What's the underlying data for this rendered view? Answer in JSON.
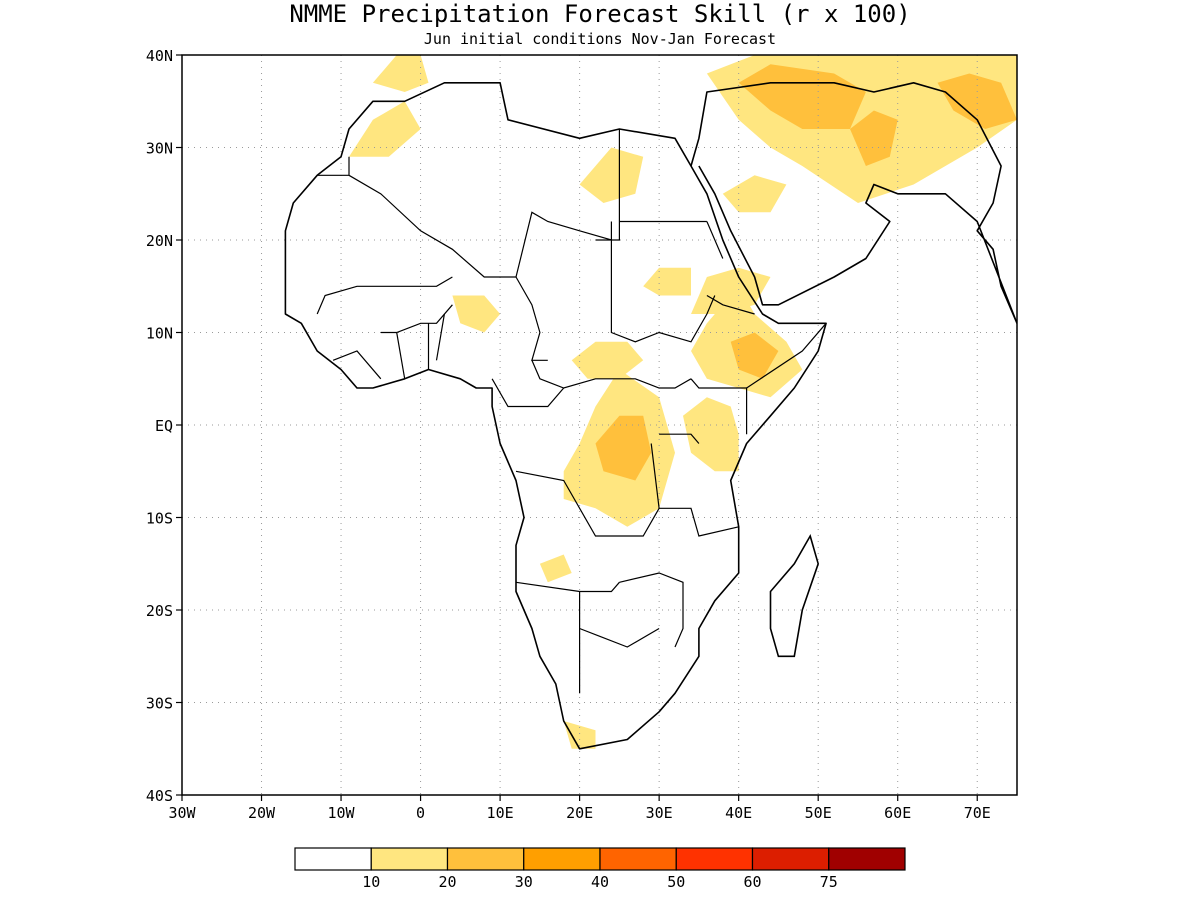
{
  "title": "NMME Precipitation Forecast Skill (r x 100)",
  "subtitle": "Jun initial conditions  Nov-Jan Forecast",
  "map": {
    "lon_range": [
      -30,
      75
    ],
    "lat_range": [
      -40,
      40
    ],
    "grid": true,
    "lat_ticks": [
      {
        "value": 40,
        "label": "40N"
      },
      {
        "value": 30,
        "label": "30N"
      },
      {
        "value": 20,
        "label": "20N"
      },
      {
        "value": 10,
        "label": "10N"
      },
      {
        "value": 0,
        "label": "EQ"
      },
      {
        "value": -10,
        "label": "10S"
      },
      {
        "value": -20,
        "label": "20S"
      },
      {
        "value": -30,
        "label": "30S"
      },
      {
        "value": -40,
        "label": "40S"
      }
    ],
    "lon_ticks": [
      {
        "value": -30,
        "label": "30W"
      },
      {
        "value": -20,
        "label": "20W"
      },
      {
        "value": -10,
        "label": "10W"
      },
      {
        "value": 0,
        "label": "0"
      },
      {
        "value": 10,
        "label": "10E"
      },
      {
        "value": 20,
        "label": "20E"
      },
      {
        "value": 30,
        "label": "30E"
      },
      {
        "value": 40,
        "label": "40E"
      },
      {
        "value": 50,
        "label": "50E"
      },
      {
        "value": 60,
        "label": "60E"
      },
      {
        "value": 70,
        "label": "70E"
      }
    ]
  },
  "colorbar": {
    "colors": [
      "#ffffff",
      "#ffe680",
      "#ffc03c",
      "#ff9f00",
      "#ff6400",
      "#ff3200",
      "#dc1e00",
      "#a00000"
    ],
    "labels": [
      "10",
      "20",
      "30",
      "40",
      "50",
      "60",
      "75"
    ]
  },
  "skill_regions": [
    {
      "level": 1,
      "poly": [
        [
          18,
          -5
        ],
        [
          20,
          -2
        ],
        [
          22,
          2
        ],
        [
          25,
          6
        ],
        [
          30,
          3
        ],
        [
          32,
          -3
        ],
        [
          30,
          -9
        ],
        [
          26,
          -11
        ],
        [
          22,
          -9
        ],
        [
          18,
          -8
        ]
      ]
    },
    {
      "level": 2,
      "poly": [
        [
          22,
          -2
        ],
        [
          25,
          1
        ],
        [
          28,
          1
        ],
        [
          29,
          -3
        ],
        [
          27,
          -6
        ],
        [
          23,
          -5
        ]
      ]
    },
    {
      "level": 1,
      "poly": [
        [
          33,
          1
        ],
        [
          36,
          3
        ],
        [
          39,
          2
        ],
        [
          40,
          -1
        ],
        [
          40,
          -5
        ],
        [
          37,
          -5
        ],
        [
          34,
          -3
        ]
      ]
    },
    {
      "level": 1,
      "poly": [
        [
          34,
          8
        ],
        [
          36,
          11
        ],
        [
          40,
          15
        ],
        [
          42,
          12
        ],
        [
          46,
          9
        ],
        [
          48,
          6
        ],
        [
          44,
          3
        ],
        [
          40,
          4
        ],
        [
          36,
          5
        ]
      ]
    },
    {
      "level": 2,
      "poly": [
        [
          39,
          9
        ],
        [
          42,
          10
        ],
        [
          45,
          8
        ],
        [
          43,
          5
        ],
        [
          40,
          6
        ]
      ]
    },
    {
      "level": 1,
      "poly": [
        [
          19,
          7
        ],
        [
          22,
          9
        ],
        [
          26,
          9
        ],
        [
          28,
          7
        ],
        [
          25,
          5
        ],
        [
          21,
          5
        ]
      ]
    },
    {
      "level": 1,
      "poly": [
        [
          34,
          12
        ],
        [
          36,
          16
        ],
        [
          40,
          17
        ],
        [
          44,
          16
        ],
        [
          42,
          13
        ],
        [
          38,
          12
        ]
      ]
    },
    {
      "level": 1,
      "poly": [
        [
          28,
          15
        ],
        [
          30,
          17
        ],
        [
          34,
          17
        ],
        [
          34,
          14
        ],
        [
          30,
          14
        ]
      ]
    },
    {
      "level": 1,
      "poly": [
        [
          4,
          14
        ],
        [
          8,
          14
        ],
        [
          10,
          12
        ],
        [
          8,
          10
        ],
        [
          5,
          11
        ]
      ]
    },
    {
      "level": 1,
      "poly": [
        [
          15,
          -15
        ],
        [
          18,
          -14
        ],
        [
          19,
          -16
        ],
        [
          16,
          -17
        ]
      ]
    },
    {
      "level": 1,
      "poly": [
        [
          18,
          -32
        ],
        [
          22,
          -33
        ],
        [
          22,
          -35
        ],
        [
          19,
          -35
        ]
      ]
    },
    {
      "level": 1,
      "poly": [
        [
          20,
          26
        ],
        [
          24,
          30
        ],
        [
          28,
          29
        ],
        [
          27,
          25
        ],
        [
          23,
          24
        ]
      ]
    },
    {
      "level": 1,
      "poly": [
        [
          -9,
          29
        ],
        [
          -6,
          33
        ],
        [
          -2,
          35
        ],
        [
          0,
          32
        ],
        [
          -4,
          29
        ]
      ]
    },
    {
      "level": 1,
      "poly": [
        [
          -6,
          37
        ],
        [
          -3,
          40
        ],
        [
          0,
          40
        ],
        [
          1,
          37
        ],
        [
          -2,
          36
        ]
      ]
    },
    {
      "level": 1,
      "poly": [
        [
          36,
          38
        ],
        [
          42,
          40
        ],
        [
          55,
          40
        ],
        [
          75,
          40
        ],
        [
          75,
          33
        ],
        [
          70,
          30
        ],
        [
          62,
          26
        ],
        [
          55,
          24
        ],
        [
          48,
          28
        ],
        [
          44,
          30
        ],
        [
          40,
          33
        ]
      ]
    },
    {
      "level": 2,
      "poly": [
        [
          40,
          37
        ],
        [
          44,
          39
        ],
        [
          52,
          38
        ],
        [
          56,
          36
        ],
        [
          54,
          32
        ],
        [
          48,
          32
        ],
        [
          44,
          34
        ]
      ]
    },
    {
      "level": 2,
      "poly": [
        [
          54,
          32
        ],
        [
          57,
          34
        ],
        [
          60,
          33
        ],
        [
          59,
          29
        ],
        [
          56,
          28
        ]
      ]
    },
    {
      "level": 2,
      "poly": [
        [
          65,
          37
        ],
        [
          69,
          38
        ],
        [
          73,
          37
        ],
        [
          75,
          33
        ],
        [
          71,
          32
        ],
        [
          67,
          34
        ]
      ]
    },
    {
      "level": 1,
      "poly": [
        [
          38,
          25
        ],
        [
          42,
          27
        ],
        [
          46,
          26
        ],
        [
          44,
          23
        ],
        [
          40,
          23
        ]
      ]
    }
  ],
  "coastline": [
    [
      -17,
      21
    ],
    [
      -16,
      24
    ],
    [
      -13,
      27
    ],
    [
      -10,
      29
    ],
    [
      -9,
      32
    ],
    [
      -6,
      35
    ],
    [
      -2,
      35
    ],
    [
      3,
      37
    ],
    [
      10,
      37
    ],
    [
      11,
      33
    ],
    [
      20,
      31
    ],
    [
      25,
      32
    ],
    [
      32,
      31
    ],
    [
      34,
      28
    ],
    [
      36,
      25
    ],
    [
      38,
      20
    ],
    [
      40,
      16
    ],
    [
      43,
      12
    ],
    [
      45,
      11
    ],
    [
      51,
      11
    ],
    [
      50,
      8
    ],
    [
      47,
      4
    ],
    [
      44,
      1
    ],
    [
      41,
      -2
    ],
    [
      39,
      -6
    ],
    [
      40,
      -11
    ],
    [
      40,
      -16
    ],
    [
      37,
      -19
    ],
    [
      35,
      -22
    ],
    [
      35,
      -25
    ],
    [
      32,
      -29
    ],
    [
      30,
      -31
    ],
    [
      26,
      -34
    ],
    [
      20,
      -35
    ],
    [
      18,
      -32
    ],
    [
      17,
      -28
    ],
    [
      15,
      -25
    ],
    [
      14,
      -22
    ],
    [
      12,
      -18
    ],
    [
      12,
      -13
    ],
    [
      13,
      -10
    ],
    [
      12,
      -6
    ],
    [
      10,
      -2
    ],
    [
      9,
      2
    ],
    [
      9,
      4
    ],
    [
      7,
      4
    ],
    [
      5,
      5
    ],
    [
      1,
      6
    ],
    [
      -2,
      5
    ],
    [
      -6,
      4
    ],
    [
      -8,
      4
    ],
    [
      -10,
      6
    ],
    [
      -13,
      8
    ],
    [
      -15,
      11
    ],
    [
      -17,
      12
    ],
    [
      -17,
      15
    ],
    [
      -17,
      19
    ]
  ],
  "arabia": [
    [
      34,
      28
    ],
    [
      35,
      31
    ],
    [
      36,
      36
    ],
    [
      44,
      37
    ],
    [
      52,
      37
    ],
    [
      57,
      36
    ],
    [
      62,
      37
    ],
    [
      66,
      36
    ],
    [
      70,
      33
    ],
    [
      73,
      28
    ],
    [
      72,
      24
    ],
    [
      70,
      21
    ],
    [
      72,
      19
    ],
    [
      73,
      15
    ],
    [
      75,
      11
    ],
    [
      70,
      22
    ],
    [
      66,
      25
    ],
    [
      60,
      25
    ],
    [
      57,
      26
    ],
    [
      56,
      24
    ],
    [
      59,
      22
    ],
    [
      56,
      18
    ],
    [
      52,
      16
    ],
    [
      45,
      13
    ],
    [
      43,
      13
    ],
    [
      42,
      16
    ],
    [
      39,
      21
    ],
    [
      37,
      25
    ],
    [
      35,
      28
    ]
  ],
  "madagascar": [
    [
      49,
      -12
    ],
    [
      50,
      -15
    ],
    [
      48,
      -20
    ],
    [
      47,
      -25
    ],
    [
      45,
      -25
    ],
    [
      44,
      -22
    ],
    [
      44,
      -18
    ],
    [
      47,
      -15
    ]
  ],
  "borders": [
    [
      [
        -13,
        27
      ],
      [
        -9,
        27
      ],
      [
        -9,
        29
      ]
    ],
    [
      [
        -9,
        27
      ],
      [
        -5,
        25
      ],
      [
        0,
        21
      ],
      [
        4,
        19
      ],
      [
        8,
        16
      ],
      [
        12,
        16
      ],
      [
        14,
        23
      ],
      [
        16,
        22
      ],
      [
        20,
        21
      ],
      [
        24,
        20
      ],
      [
        24,
        22
      ]
    ],
    [
      [
        12,
        16
      ],
      [
        14,
        13
      ],
      [
        15,
        10
      ],
      [
        14,
        7
      ],
      [
        16,
        7
      ]
    ],
    [
      [
        25,
        32
      ],
      [
        25,
        20
      ],
      [
        22,
        20
      ]
    ],
    [
      [
        25,
        22
      ],
      [
        36,
        22
      ]
    ],
    [
      [
        24,
        20
      ],
      [
        24,
        10
      ],
      [
        27,
        9
      ],
      [
        30,
        10
      ],
      [
        34,
        9
      ],
      [
        36,
        12
      ],
      [
        37,
        14
      ]
    ],
    [
      [
        14,
        7
      ],
      [
        15,
        5
      ],
      [
        18,
        4
      ],
      [
        22,
        5
      ],
      [
        27,
        5
      ],
      [
        30,
        4
      ],
      [
        32,
        4
      ],
      [
        34,
        5
      ]
    ],
    [
      [
        34,
        5
      ],
      [
        35,
        4
      ],
      [
        38,
        4
      ],
      [
        41,
        4
      ],
      [
        41,
        -1
      ]
    ],
    [
      [
        30,
        -1
      ],
      [
        34,
        -1
      ],
      [
        35,
        -2
      ]
    ],
    [
      [
        12,
        -5
      ],
      [
        18,
        -6
      ],
      [
        22,
        -12
      ],
      [
        28,
        -12
      ],
      [
        30,
        -9
      ]
    ],
    [
      [
        12,
        -17
      ],
      [
        20,
        -18
      ],
      [
        24,
        -18
      ],
      [
        25,
        -17
      ]
    ],
    [
      [
        20,
        -18
      ],
      [
        20,
        -22
      ],
      [
        20,
        -25
      ],
      [
        20,
        -29
      ]
    ],
    [
      [
        25,
        -17
      ],
      [
        30,
        -16
      ],
      [
        33,
        -17
      ],
      [
        33,
        -22
      ],
      [
        32,
        -24
      ]
    ],
    [
      [
        20,
        -22
      ],
      [
        26,
        -24
      ],
      [
        30,
        -22
      ]
    ],
    [
      [
        -11,
        7
      ],
      [
        -8,
        8
      ],
      [
        -5,
        5
      ]
    ],
    [
      [
        -5,
        10
      ],
      [
        -3,
        10
      ],
      [
        0,
        11
      ],
      [
        2,
        11
      ],
      [
        4,
        13
      ]
    ],
    [
      [
        -13,
        12
      ],
      [
        -12,
        14
      ],
      [
        -8,
        15
      ],
      [
        -5,
        15
      ],
      [
        2,
        15
      ],
      [
        4,
        16
      ]
    ],
    [
      [
        -2,
        5
      ],
      [
        -3,
        10
      ]
    ],
    [
      [
        1,
        6
      ],
      [
        1,
        11
      ]
    ],
    [
      [
        2,
        7
      ],
      [
        3,
        12
      ]
    ],
    [
      [
        9,
        5
      ],
      [
        11,
        2
      ],
      [
        14,
        2
      ],
      [
        16,
        2
      ],
      [
        18,
        4
      ]
    ],
    [
      [
        41,
        4
      ],
      [
        48,
        8
      ],
      [
        51,
        11
      ]
    ],
    [
      [
        42,
        12
      ],
      [
        38,
        13
      ],
      [
        36,
        14
      ]
    ],
    [
      [
        36,
        22
      ],
      [
        38,
        18
      ]
    ],
    [
      [
        29,
        -2
      ],
      [
        30,
        -9
      ],
      [
        34,
        -9
      ],
      [
        35,
        -12
      ],
      [
        40,
        -11
      ]
    ]
  ]
}
